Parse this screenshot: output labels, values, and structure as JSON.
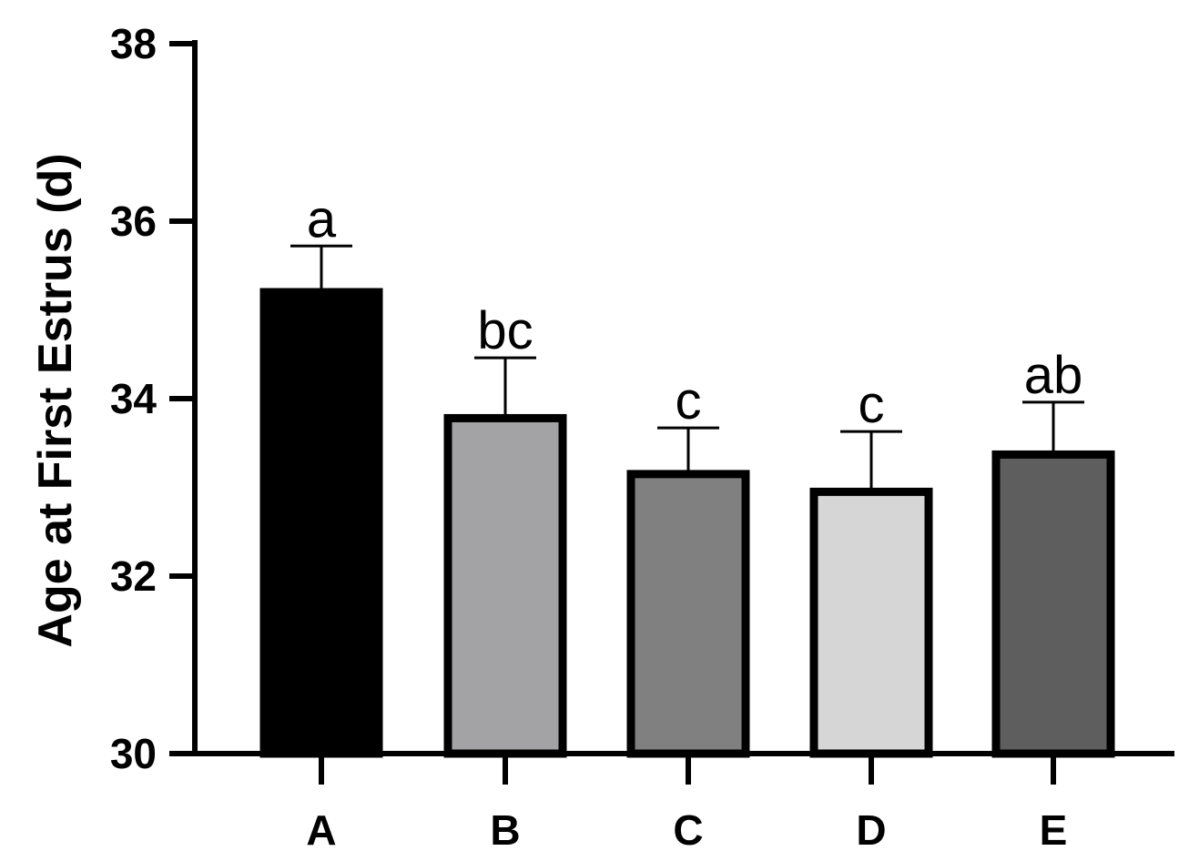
{
  "chart_data": {
    "type": "bar",
    "title": "",
    "xlabel": "",
    "ylabel": "Age at First Estrus (d)",
    "ylim": [
      30,
      38
    ],
    "yticks": [
      "30",
      "32",
      "34",
      "36",
      "38"
    ],
    "categories": [
      "A",
      "B",
      "C",
      "D",
      "E"
    ],
    "values": [
      35.2,
      33.78,
      33.15,
      32.95,
      33.37
    ],
    "errors": [
      0.52,
      0.68,
      0.52,
      0.68,
      0.59
    ],
    "significance_labels": [
      "a",
      "bc",
      "c",
      "c",
      "ab"
    ],
    "bar_colors": [
      "#000000",
      "#a3a3a6",
      "#808080",
      "#d6d6d6",
      "#5e5e5e"
    ],
    "grid": false
  }
}
